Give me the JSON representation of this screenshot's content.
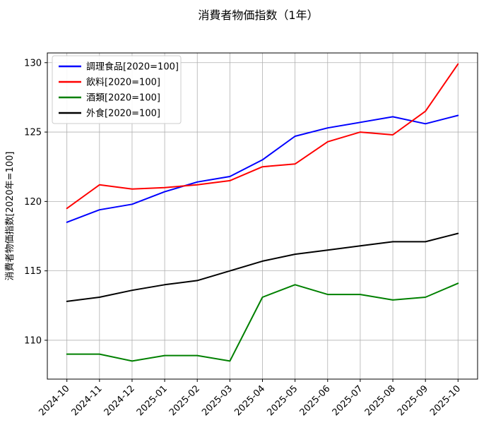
{
  "title": "消費者物価指数（1年）",
  "chart_data": {
    "type": "line",
    "title": "消費者物価指数（1年）",
    "xlabel": "",
    "ylabel": "消費者物価指数[2020年=100]",
    "grid": true,
    "legend_position": "upper left",
    "categories": [
      "2024-10",
      "2024-11",
      "2024-12",
      "2025-01",
      "2025-02",
      "2025-03",
      "2025-04",
      "2025-05",
      "2025-06",
      "2025-07",
      "2025-08",
      "2025-09",
      "2025-10"
    ],
    "yticks": [
      110,
      115,
      120,
      125,
      130
    ],
    "ylim": [
      107.2,
      130.7
    ],
    "series": [
      {
        "name": "調理食品[2020=100]",
        "color": "#0000ff",
        "values": [
          118.5,
          119.4,
          119.8,
          120.7,
          121.4,
          121.8,
          123.0,
          124.7,
          125.3,
          125.7,
          126.1,
          125.6,
          126.2
        ]
      },
      {
        "name": "飲料[2020=100]",
        "color": "#ff0000",
        "values": [
          119.5,
          121.2,
          120.9,
          121.0,
          121.2,
          121.5,
          122.5,
          122.7,
          124.3,
          125.0,
          124.8,
          126.5,
          129.9
        ]
      },
      {
        "name": "酒類[2020=100]",
        "color": "#008000",
        "values": [
          109.0,
          109.0,
          108.5,
          108.9,
          108.9,
          108.5,
          113.1,
          114.0,
          113.3,
          113.3,
          112.9,
          113.1,
          114.1
        ]
      },
      {
        "name": "外食[2020=100]",
        "color": "#000000",
        "values": [
          112.8,
          113.1,
          113.6,
          114.0,
          114.3,
          115.0,
          115.7,
          116.2,
          116.5,
          116.8,
          117.1,
          117.1,
          117.7
        ]
      }
    ],
    "colors": {
      "grid": "#b0b0b0",
      "axis": "#000000",
      "legend_border": "#cccccc",
      "background": "#ffffff"
    }
  }
}
